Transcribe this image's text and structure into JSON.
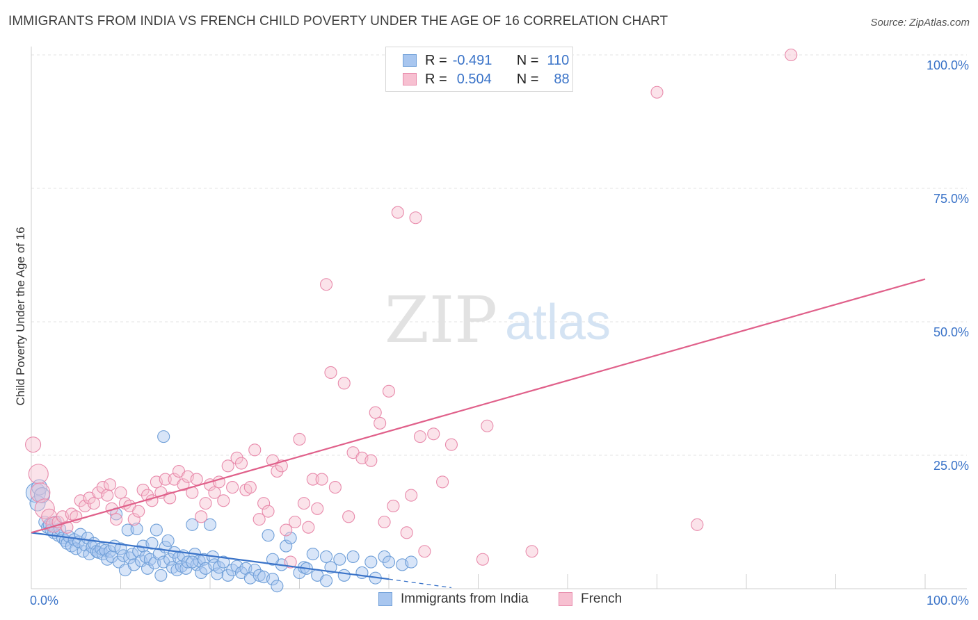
{
  "title": "IMMIGRANTS FROM INDIA VS FRENCH CHILD POVERTY UNDER THE AGE OF 16 CORRELATION CHART",
  "source": "Source: ZipAtlas.com",
  "watermark": {
    "zip": "ZIP",
    "atlas": "atlas"
  },
  "legend": {
    "rows": [
      {
        "r_label": "R =",
        "r_value": "-0.491",
        "n_label": "N =",
        "n_value": "110",
        "color": "#a8c6ef",
        "border": "#6f9fd8"
      },
      {
        "r_label": "R =",
        "r_value": "0.504",
        "n_label": "N =",
        "n_value": "88",
        "color": "#f7c0d1",
        "border": "#e88aab"
      }
    ]
  },
  "bottom_legend": [
    {
      "label": "Immigrants from India",
      "color": "#a8c6ef",
      "border": "#6f9fd8"
    },
    {
      "label": "French",
      "color": "#f7c0d1",
      "border": "#e88aab"
    }
  ],
  "chart_data": {
    "type": "scatter",
    "title": "IMMIGRANTS FROM INDIA VS FRENCH CHILD POVERTY UNDER THE AGE OF 16 CORRELATION CHART",
    "xlabel": "",
    "ylabel": "Child Poverty Under the Age of 16",
    "xlim": [
      0,
      100
    ],
    "ylim": [
      0,
      100
    ],
    "x_tick_labels": [
      "0.0%",
      "100.0%"
    ],
    "y_tick_labels": [
      "25.0%",
      "50.0%",
      "75.0%",
      "100.0%"
    ],
    "y_ticks": [
      25,
      50,
      75,
      100
    ],
    "grid": true,
    "series": [
      {
        "name": "Immigrants from India",
        "color": "#a8c6ef",
        "edge": "#6f9fd8",
        "trend": {
          "x": [
            0,
            40
          ],
          "y": [
            10.5,
            1.8
          ],
          "dashed_to": [
            47,
            0.2
          ],
          "color": "#3a73c8"
        },
        "points": [
          [
            0.5,
            18.0,
            3
          ],
          [
            0.7,
            16.0,
            2
          ],
          [
            0.9,
            19.0,
            2
          ],
          [
            1.2,
            17.5,
            2
          ],
          [
            1.5,
            12.5,
            1
          ],
          [
            1.8,
            11.5,
            1
          ],
          [
            2.0,
            12.0,
            1
          ],
          [
            2.2,
            11.0,
            1
          ],
          [
            2.5,
            10.5,
            1
          ],
          [
            2.7,
            12.5,
            1
          ],
          [
            3.0,
            10.0,
            1
          ],
          [
            3.2,
            11.2,
            1
          ],
          [
            3.5,
            9.5,
            1
          ],
          [
            3.8,
            9.0,
            1
          ],
          [
            4.0,
            8.5,
            1
          ],
          [
            4.2,
            9.8,
            1
          ],
          [
            4.5,
            8.0,
            1
          ],
          [
            4.8,
            9.2,
            1
          ],
          [
            5.0,
            7.5,
            1
          ],
          [
            5.3,
            8.8,
            1
          ],
          [
            5.5,
            10.2,
            1
          ],
          [
            5.8,
            7.0,
            1
          ],
          [
            6.0,
            8.2,
            1
          ],
          [
            6.3,
            9.5,
            1
          ],
          [
            6.5,
            6.5,
            1
          ],
          [
            6.8,
            7.8,
            1
          ],
          [
            7.0,
            8.5,
            1
          ],
          [
            7.3,
            7.0,
            1
          ],
          [
            7.5,
            6.8,
            1
          ],
          [
            7.8,
            7.5,
            1
          ],
          [
            8.0,
            6.5,
            1
          ],
          [
            8.3,
            7.2,
            1
          ],
          [
            8.5,
            5.5,
            1
          ],
          [
            8.8,
            7.0,
            1
          ],
          [
            9.0,
            6.0,
            1
          ],
          [
            9.3,
            8.0,
            1
          ],
          [
            9.5,
            14.0,
            1
          ],
          [
            9.8,
            5.0,
            1
          ],
          [
            10.0,
            7.5,
            1
          ],
          [
            10.3,
            6.2,
            1
          ],
          [
            10.5,
            3.5,
            1
          ],
          [
            10.8,
            11.0,
            1
          ],
          [
            11.0,
            5.8,
            1
          ],
          [
            11.3,
            6.5,
            1
          ],
          [
            11.5,
            4.5,
            1
          ],
          [
            11.8,
            11.2,
            1
          ],
          [
            12.0,
            7.0,
            1
          ],
          [
            12.3,
            5.2,
            1
          ],
          [
            12.5,
            8.0,
            1
          ],
          [
            12.8,
            6.0,
            1
          ],
          [
            13.0,
            3.8,
            1
          ],
          [
            13.3,
            5.5,
            1
          ],
          [
            13.5,
            8.5,
            1
          ],
          [
            13.8,
            4.8,
            1
          ],
          [
            14.0,
            11.0,
            1
          ],
          [
            14.3,
            6.5,
            1
          ],
          [
            14.5,
            2.5,
            1
          ],
          [
            14.8,
            5.0,
            1
          ],
          [
            15.0,
            7.8,
            1
          ],
          [
            15.3,
            9.0,
            1
          ],
          [
            15.5,
            5.5,
            1
          ],
          [
            15.8,
            4.0,
            1
          ],
          [
            16.0,
            6.8,
            1
          ],
          [
            16.3,
            3.5,
            1
          ],
          [
            16.5,
            5.8,
            1
          ],
          [
            16.8,
            4.2,
            1
          ],
          [
            17.0,
            6.2,
            1
          ],
          [
            17.3,
            3.8,
            1
          ],
          [
            17.5,
            5.0,
            1
          ],
          [
            18.0,
            12.0,
            1
          ],
          [
            18.3,
            6.5,
            1
          ],
          [
            18.5,
            4.5,
            1
          ],
          [
            18.8,
            5.2,
            1
          ],
          [
            19.0,
            3.0,
            1
          ],
          [
            19.3,
            5.5,
            1
          ],
          [
            19.5,
            3.8,
            1
          ],
          [
            20.0,
            12.0,
            1
          ],
          [
            20.3,
            6.0,
            1
          ],
          [
            20.5,
            4.5,
            1
          ],
          [
            20.8,
            2.8,
            1
          ],
          [
            21.0,
            4.0,
            1
          ],
          [
            21.5,
            5.0,
            1
          ],
          [
            22.0,
            2.5,
            1
          ],
          [
            22.5,
            3.5,
            1
          ],
          [
            23.0,
            4.2,
            1
          ],
          [
            23.5,
            3.0,
            1
          ],
          [
            24.0,
            3.8,
            1
          ],
          [
            24.5,
            2.0,
            1
          ],
          [
            25.0,
            3.5,
            1
          ],
          [
            25.5,
            2.5,
            1
          ],
          [
            26.0,
            2.2,
            1
          ],
          [
            26.5,
            10.0,
            1
          ],
          [
            27.0,
            1.8,
            1
          ],
          [
            27.5,
            0.5,
            1
          ],
          [
            28.0,
            4.5,
            1
          ],
          [
            28.5,
            8.0,
            1
          ],
          [
            29.0,
            9.5,
            1
          ],
          [
            30.0,
            3.0,
            1
          ],
          [
            30.5,
            4.0,
            1
          ],
          [
            31.5,
            6.5,
            1
          ],
          [
            32.0,
            2.5,
            1
          ],
          [
            33.0,
            6.0,
            1
          ],
          [
            33.5,
            4.0,
            1
          ],
          [
            34.5,
            5.5,
            1
          ],
          [
            35.0,
            2.5,
            1
          ],
          [
            36.0,
            6.0,
            1
          ],
          [
            37.0,
            3.0,
            1
          ],
          [
            38.0,
            5.0,
            1
          ],
          [
            38.5,
            2.0,
            1
          ],
          [
            39.5,
            6.0,
            1
          ],
          [
            40.0,
            5.0,
            1
          ],
          [
            41.5,
            4.5,
            1
          ],
          [
            42.5,
            5.0,
            1
          ],
          [
            14.8,
            28.5,
            1
          ],
          [
            27.0,
            5.5,
            1
          ],
          [
            30.8,
            3.8,
            1
          ],
          [
            33.0,
            1.5,
            1
          ],
          [
            18.0,
            5.0,
            1
          ]
        ]
      },
      {
        "name": "French",
        "color": "#f7c0d1",
        "edge": "#e88aab",
        "trend": {
          "x": [
            0,
            100
          ],
          "y": [
            10.5,
            58.0
          ],
          "color": "#e0608a"
        },
        "points": [
          [
            0.2,
            27.0,
            2
          ],
          [
            0.8,
            21.5,
            3
          ],
          [
            1.0,
            18.0,
            3
          ],
          [
            1.5,
            15.0,
            3
          ],
          [
            2.0,
            13.5,
            2
          ],
          [
            2.5,
            12.0,
            2
          ],
          [
            3.0,
            12.5,
            1
          ],
          [
            3.5,
            13.5,
            1
          ],
          [
            4.0,
            11.5,
            1
          ],
          [
            4.5,
            14.0,
            1
          ],
          [
            5.0,
            13.5,
            1
          ],
          [
            5.5,
            16.5,
            1
          ],
          [
            6.0,
            15.5,
            1
          ],
          [
            6.5,
            17.0,
            1
          ],
          [
            7.0,
            16.0,
            1
          ],
          [
            7.5,
            18.0,
            1
          ],
          [
            8.0,
            19.0,
            1
          ],
          [
            8.5,
            17.5,
            1
          ],
          [
            8.8,
            19.5,
            1
          ],
          [
            9.0,
            15.0,
            1
          ],
          [
            9.5,
            13.0,
            1
          ],
          [
            10.0,
            18.0,
            1
          ],
          [
            10.5,
            16.0,
            1
          ],
          [
            11.0,
            15.5,
            1
          ],
          [
            11.5,
            13.0,
            1
          ],
          [
            12.0,
            14.5,
            1
          ],
          [
            12.5,
            18.5,
            1
          ],
          [
            13.0,
            17.5,
            1
          ],
          [
            13.5,
            16.5,
            1
          ],
          [
            14.0,
            20.0,
            1
          ],
          [
            14.5,
            18.0,
            1
          ],
          [
            15.0,
            20.5,
            1
          ],
          [
            15.5,
            17.0,
            1
          ],
          [
            16.0,
            20.5,
            1
          ],
          [
            16.5,
            22.0,
            1
          ],
          [
            17.0,
            19.5,
            1
          ],
          [
            17.5,
            21.0,
            1
          ],
          [
            18.0,
            18.0,
            1
          ],
          [
            18.5,
            20.5,
            1
          ],
          [
            19.0,
            13.5,
            1
          ],
          [
            19.5,
            16.0,
            1
          ],
          [
            20.0,
            19.5,
            1
          ],
          [
            20.5,
            18.0,
            1
          ],
          [
            21.0,
            20.0,
            1
          ],
          [
            21.5,
            16.5,
            1
          ],
          [
            22.0,
            23.0,
            1
          ],
          [
            22.5,
            19.0,
            1
          ],
          [
            23.0,
            24.5,
            1
          ],
          [
            23.5,
            23.5,
            1
          ],
          [
            24.0,
            18.5,
            1
          ],
          [
            24.5,
            19.0,
            1
          ],
          [
            25.0,
            26.0,
            1
          ],
          [
            25.5,
            13.0,
            1
          ],
          [
            26.0,
            16.0,
            1
          ],
          [
            26.5,
            14.5,
            1
          ],
          [
            27.0,
            24.0,
            1
          ],
          [
            27.5,
            22.0,
            1
          ],
          [
            28.0,
            23.0,
            1
          ],
          [
            28.5,
            11.0,
            1
          ],
          [
            29.0,
            5.0,
            1
          ],
          [
            29.5,
            12.5,
            1
          ],
          [
            30.0,
            28.0,
            1
          ],
          [
            30.5,
            16.0,
            1
          ],
          [
            31.0,
            11.5,
            1
          ],
          [
            31.5,
            20.5,
            1
          ],
          [
            32.0,
            15.0,
            1
          ],
          [
            32.5,
            20.5,
            1
          ],
          [
            33.0,
            57.0,
            1
          ],
          [
            33.5,
            40.5,
            1
          ],
          [
            34.0,
            19.0,
            1
          ],
          [
            35.0,
            38.5,
            1
          ],
          [
            35.5,
            13.5,
            1
          ],
          [
            36.0,
            25.5,
            1
          ],
          [
            37.0,
            24.5,
            1
          ],
          [
            38.0,
            24.0,
            1
          ],
          [
            38.5,
            33.0,
            1
          ],
          [
            39.0,
            31.0,
            1
          ],
          [
            39.5,
            12.5,
            1
          ],
          [
            40.0,
            37.0,
            1
          ],
          [
            40.5,
            15.5,
            1
          ],
          [
            41.0,
            70.5,
            1
          ],
          [
            42.0,
            10.5,
            1
          ],
          [
            42.5,
            17.5,
            1
          ],
          [
            43.0,
            69.5,
            1
          ],
          [
            43.5,
            28.5,
            1
          ],
          [
            44.0,
            7.0,
            1
          ],
          [
            45.0,
            29.0,
            1
          ],
          [
            46.0,
            20.0,
            1
          ],
          [
            47.0,
            27.0,
            1
          ],
          [
            50.5,
            5.5,
            1
          ],
          [
            51.0,
            30.5,
            1
          ],
          [
            56.0,
            7.0,
            1
          ],
          [
            70.0,
            93.0,
            1
          ],
          [
            74.5,
            12.0,
            1
          ],
          [
            85.0,
            100.0,
            1
          ]
        ]
      }
    ]
  }
}
